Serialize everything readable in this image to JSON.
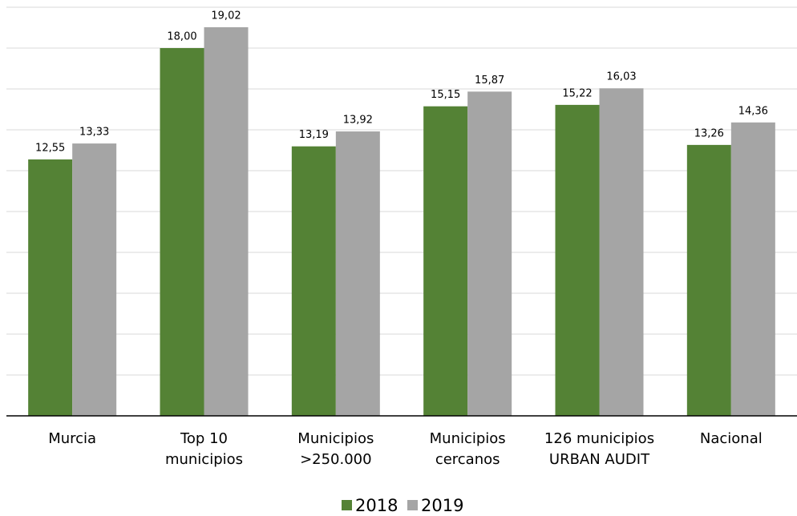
{
  "chart_data": {
    "type": "bar",
    "categories": [
      "Murcia",
      "Top 10\nmunicipios",
      "Municipios\n>250.000",
      "Municipios\ncercanos",
      "126 municipios\nURBAN AUDIT",
      "Nacional"
    ],
    "series": [
      {
        "name": "2018",
        "color": "#548235",
        "values": [
          12.55,
          18.0,
          13.19,
          15.15,
          15.22,
          13.26
        ],
        "value_labels": [
          "12,55",
          "18,00",
          "13,19",
          "15,15",
          "15,22",
          "13,26"
        ]
      },
      {
        "name": "2019",
        "color": "#a5a5a5",
        "values": [
          13.33,
          19.02,
          13.92,
          15.87,
          16.03,
          14.36
        ],
        "value_labels": [
          "13,33",
          "19,02",
          "13,92",
          "15,87",
          "16,03",
          "14,36"
        ]
      }
    ],
    "ylim": [
      0,
      20
    ],
    "yticks": [
      0,
      2,
      4,
      6,
      8,
      10,
      12,
      14,
      16,
      18,
      20
    ],
    "grid": true,
    "legend": "bottom"
  }
}
